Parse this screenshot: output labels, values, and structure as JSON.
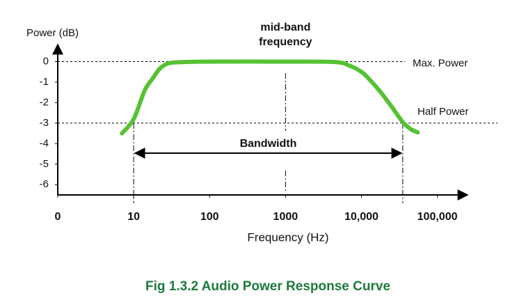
{
  "chart_data": {
    "type": "line",
    "y_label": "Power (dB)",
    "x_label": "Frequency (Hz)",
    "caption": "Fig 1.3.2 Audio Power Response Curve",
    "xscale": "log",
    "xlim": [
      1,
      250000
    ],
    "xticks": [
      0,
      10,
      100,
      1000,
      {
        "value": 10000,
        "label": "10,000"
      },
      {
        "value": 100000,
        "label": "100,000"
      }
    ],
    "ylim": [
      -6.5,
      0.9
    ],
    "yticks": [
      0,
      -1,
      -2,
      -3,
      -4,
      -5,
      -6
    ],
    "series": [
      {
        "color": "#55c234",
        "x": [
          7,
          10,
          14,
          18,
          22,
          28,
          40,
          100,
          1000,
          4500,
          7000,
          10000,
          13000,
          18000,
          25000,
          35000,
          45000,
          55000
        ],
        "values": [
          -3.5,
          -2.8,
          -1.4,
          -0.8,
          -0.35,
          -0.1,
          -0.03,
          0,
          0,
          -0.02,
          -0.2,
          -0.5,
          -0.9,
          -1.5,
          -2.2,
          -2.95,
          -3.3,
          -3.45
        ]
      }
    ],
    "reference_lines": [
      {
        "label": "Max. Power",
        "y": 0
      },
      {
        "label": "Half Power",
        "y": -3
      }
    ],
    "mid_band": {
      "label": [
        "mid-band",
        "frequency"
      ],
      "x": 1000
    },
    "bandwidth": {
      "label": "Bandwidth",
      "x": [
        10,
        35000
      ]
    }
  }
}
